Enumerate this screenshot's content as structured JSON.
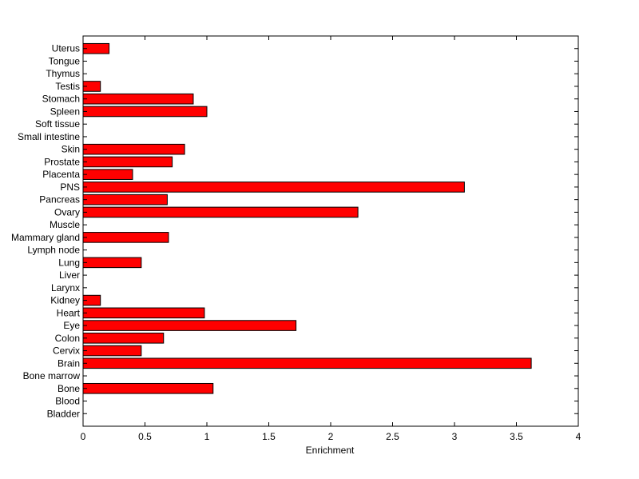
{
  "chart_data": {
    "type": "bar",
    "orientation": "horizontal",
    "title": "",
    "xlabel": "Enrichment",
    "ylabel": "",
    "xlim": [
      0,
      4
    ],
    "xticks": [
      "0",
      "0.5",
      "1",
      "1.5",
      "2",
      "2.5",
      "3",
      "3.5",
      "4"
    ],
    "grid": false,
    "legend": "none",
    "bar_color": "#ff0000",
    "bar_edge_color": "#000000",
    "categories": [
      "Bladder",
      "Blood",
      "Bone",
      "Bone marrow",
      "Brain",
      "Cervix",
      "Colon",
      "Eye",
      "Heart",
      "Kidney",
      "Larynx",
      "Liver",
      "Lung",
      "Lymph node",
      "Mammary gland",
      "Muscle",
      "Ovary",
      "Pancreas",
      "PNS",
      "Placenta",
      "Prostate",
      "Skin",
      "Small intestine",
      "Soft tissue",
      "Spleen",
      "Stomach",
      "Testis",
      "Thymus",
      "Tongue",
      "Uterus"
    ],
    "values": [
      0,
      0,
      1.05,
      0,
      3.62,
      0.47,
      0.65,
      1.72,
      0.98,
      0.14,
      0,
      0,
      0.47,
      0,
      0.69,
      0,
      2.22,
      0.68,
      3.08,
      0.4,
      0.72,
      0.82,
      0,
      0,
      1.0,
      0.89,
      0.14,
      0,
      0,
      0.21
    ]
  }
}
